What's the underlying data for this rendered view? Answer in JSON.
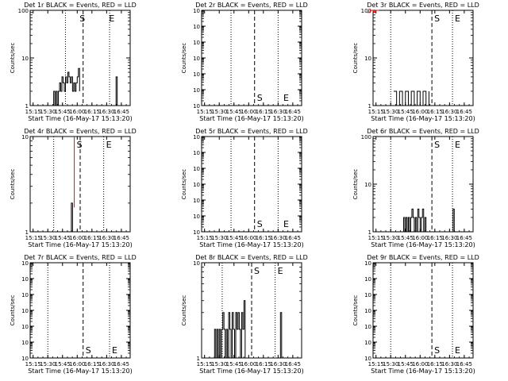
{
  "chart_data": [
    {
      "type": "line",
      "title": "Det 1r BLACK = Events, RED = LLD",
      "xlabel": "Start Time (16-May-17 15:13:20)",
      "ylabel": "Counts/sec",
      "scale": "log",
      "ylim": [
        1,
        100
      ],
      "ytick_labels": [
        "1",
        "10",
        "100"
      ],
      "xtick_labels": [
        "15:15",
        "15:30",
        "15:45",
        "16:00",
        "16:15",
        "16:30",
        "16:45"
      ],
      "xlim_min": [
        15,
        55
      ],
      "vlines": {
        "dotted": [
          15.8,
          16.55
        ],
        "dashed": 16.1
      },
      "markers": {
        "S": 16.0,
        "E": 16.5
      },
      "series": [
        {
          "name": "BLACK",
          "color": "#000000",
          "x": [
            15.58,
            15.6,
            15.62,
            15.64,
            15.66,
            15.68,
            15.7,
            15.72,
            15.74,
            15.76,
            15.78,
            15.8,
            15.82,
            15.84,
            15.86,
            15.88,
            15.9,
            15.92,
            15.94,
            15.96,
            15.98,
            16.0,
            16.02,
            16.04
          ],
          "y": [
            1,
            2,
            1,
            2,
            1,
            2,
            3,
            2,
            4,
            3,
            2,
            4,
            3,
            5,
            4,
            3,
            4,
            2,
            3,
            2,
            3,
            4,
            6,
            2
          ]
        },
        {
          "name": "BLACK-2",
          "color": "#000000",
          "x": [
            16.64,
            16.66,
            16.68
          ],
          "y": [
            1,
            4,
            1
          ]
        }
      ]
    },
    {
      "type": "line",
      "title": "Det 2r BLACK = Events, RED = LLD",
      "xlabel": "Start Time (16-May-17 15:13:20)",
      "ylabel": "Counts/sec",
      "scale": "log",
      "ylim": [
        1,
        1000000
      ],
      "ytick_labels": [
        "10",
        "10",
        "10",
        "10",
        "10",
        "10",
        "10"
      ],
      "xtick_labels": [
        "15:15",
        "15:30",
        "15:45",
        "16:00",
        "16:15",
        "16:30",
        "16:45"
      ],
      "vlines": {
        "dotted": [
          15.7,
          16.5
        ],
        "dashed": 16.1
      },
      "markers": {
        "S": 16.1,
        "E": 16.55
      },
      "series": []
    },
    {
      "type": "line",
      "title": "Det 3r BLACK = Events, RED = LLD",
      "xlabel": "Start Time (16-May-17 15:13:20)",
      "ylabel": "Counts/sec",
      "scale": "log",
      "ylim": [
        1,
        100
      ],
      "ytick_labels": [
        "1",
        "10",
        "100"
      ],
      "xtick_labels": [
        "15:15",
        "15:30",
        "15:45",
        "16:00",
        "16:15",
        "16:30",
        "16:45"
      ],
      "vlines": {
        "dotted": [
          15.5,
          16.55
        ],
        "dashed": 16.2
      },
      "markers": {
        "S": 16.2,
        "E": 16.55
      },
      "series": [
        {
          "name": "BLACK",
          "color": "#000000",
          "x": [
            15.55,
            15.6,
            15.65,
            15.7,
            15.75,
            15.8,
            15.85,
            15.9,
            15.95,
            16.0,
            16.05,
            16.1,
            16.15
          ],
          "y": [
            2,
            1,
            2,
            1,
            2,
            1,
            2,
            1,
            2,
            1,
            2,
            1,
            2
          ]
        },
        {
          "name": "RED",
          "color": "#ff0000",
          "x": [
            15.1,
            15.15,
            15.2,
            15.25,
            15.3
          ],
          "y": [
            90,
            100,
            95,
            100,
            100
          ]
        }
      ]
    },
    {
      "type": "line",
      "title": "Det 4r BLACK = Events, RED = LLD",
      "xlabel": "Start Time (16-May-17 15:13:20)",
      "ylabel": "Counts/sec",
      "scale": "log",
      "ylim": [
        1,
        10
      ],
      "ytick_labels": [
        "1",
        "10"
      ],
      "xtick_labels": [
        "15:15",
        "15:30",
        "15:45",
        "16:00",
        "16:15",
        "16:30",
        "16:45"
      ],
      "vlines": {
        "dotted": [
          15.6,
          16.45
        ],
        "dashed": 16.05
      },
      "markers": {
        "S": 15.95,
        "E": 16.45
      },
      "series": [
        {
          "name": "BLACK",
          "color": "#000000",
          "x": [
            15.88,
            15.9,
            15.92
          ],
          "y": [
            1,
            2,
            1
          ]
        },
        {
          "name": "RED",
          "color": "#ff0000",
          "x": [
            15.95,
            15.95
          ],
          "y": [
            1.8,
            10
          ]
        }
      ]
    },
    {
      "type": "line",
      "title": "Det 5r BLACK = Events, RED = LLD",
      "xlabel": "Start Time (16-May-17 15:13:20)",
      "ylabel": "Counts/sec",
      "scale": "log",
      "ylim": [
        1,
        1000000
      ],
      "ytick_labels": [
        "10",
        "10",
        "10",
        "10",
        "10",
        "10",
        "10"
      ],
      "xtick_labels": [
        "15:15",
        "15:30",
        "15:45",
        "16:00",
        "16:15",
        "16:30",
        "16:45"
      ],
      "vlines": {
        "dotted": [
          15.7,
          16.5
        ],
        "dashed": 16.1
      },
      "markers": {
        "S": 16.1,
        "E": 16.55
      },
      "series": []
    },
    {
      "type": "line",
      "title": "Det 6r BLACK = Events, RED = LLD",
      "xlabel": "Start Time (16-May-17 15:13:20)",
      "ylabel": "Counts/sec",
      "scale": "log",
      "ylim": [
        1,
        100
      ],
      "ytick_labels": [
        "1",
        "10",
        "100"
      ],
      "xtick_labels": [
        "15:15",
        "15:30",
        "15:45",
        "16:00",
        "16:15",
        "16:30",
        "16:45"
      ],
      "vlines": {
        "dotted": [
          15.5,
          16.55
        ],
        "dashed": 16.2
      },
      "markers": {
        "S": 16.2,
        "E": 16.55
      },
      "series": [
        {
          "name": "BLACK",
          "color": "#000000",
          "x": [
            15.7,
            15.72,
            15.74,
            15.76,
            15.78,
            15.8,
            15.82,
            15.84,
            15.86,
            15.88,
            15.9,
            15.92,
            15.94,
            15.96,
            15.98,
            16.0,
            16.02,
            16.04,
            16.06,
            16.08,
            16.1
          ],
          "y": [
            1,
            2,
            1,
            2,
            1,
            2,
            1,
            2,
            3,
            2,
            1,
            2,
            1,
            3,
            2,
            1,
            2,
            3,
            1,
            2,
            1
          ]
        },
        {
          "name": "BLACK-2",
          "color": "#000000",
          "x": [
            16.54,
            16.56,
            16.58
          ],
          "y": [
            1,
            3,
            1
          ]
        }
      ]
    },
    {
      "type": "line",
      "title": "Det 7r BLACK = Events, RED = LLD",
      "xlabel": "Start Time (16-May-17 15:13:20)",
      "ylabel": "Counts/sec",
      "scale": "log",
      "ylim": [
        1,
        1000000
      ],
      "ytick_labels": [
        "10",
        "10",
        "10",
        "10",
        "10",
        "10",
        "10"
      ],
      "xtick_labels": [
        "15:15",
        "15:30",
        "15:45",
        "16:00",
        "16:15",
        "16:30",
        "16:45"
      ],
      "vlines": {
        "dotted": [
          15.5,
          16.55
        ],
        "dashed": 16.1
      },
      "markers": {
        "S": 16.1,
        "E": 16.55
      },
      "series": []
    },
    {
      "type": "line",
      "title": "Det 8r BLACK = Events, RED = LLD",
      "xlabel": "Start Time (16-May-17 15:13:20)",
      "ylabel": "Counts/sec",
      "scale": "log",
      "ylim": [
        1,
        10
      ],
      "ytick_labels": [
        "1",
        "10"
      ],
      "xtick_labels": [
        "15:15",
        "15:30",
        "15:45",
        "16:00",
        "16:15",
        "16:30",
        "16:45"
      ],
      "vlines": {
        "dotted": [
          15.55,
          16.45
        ],
        "dashed": 16.05
      },
      "markers": {
        "S": 16.05,
        "E": 16.45
      },
      "series": [
        {
          "name": "BLACK",
          "color": "#000000",
          "x": [
            15.4,
            15.42,
            15.44,
            15.46,
            15.48,
            15.5,
            15.52,
            15.54,
            15.56,
            15.58,
            15.6,
            15.62,
            15.64,
            15.66,
            15.68,
            15.7,
            15.72,
            15.74,
            15.76,
            15.78,
            15.8,
            15.82,
            15.84,
            15.86,
            15.88,
            15.9,
            15.92,
            15.94
          ],
          "y": [
            1,
            2,
            1,
            2,
            1,
            2,
            1,
            2,
            3,
            2,
            1,
            2,
            1,
            3,
            2,
            1,
            3,
            2,
            1,
            3,
            2,
            3,
            2,
            1,
            3,
            2,
            4,
            1
          ]
        },
        {
          "name": "BLACK-2",
          "color": "#000000",
          "x": [
            16.52,
            16.54,
            16.56
          ],
          "y": [
            1,
            3,
            1
          ]
        }
      ]
    },
    {
      "type": "line",
      "title": "Det 9r BLACK = Events, RED = LLD",
      "xlabel": "Start Time (16-May-17 15:13:20)",
      "ylabel": "Counts/sec",
      "scale": "log",
      "ylim": [
        1,
        1000000
      ],
      "ytick_labels": [
        "10",
        "10",
        "10",
        "10",
        "10",
        "10",
        "10"
      ],
      "xtick_labels": [
        "15:15",
        "15:30",
        "15:45",
        "16:00",
        "16:15",
        "16:30",
        "16:45"
      ],
      "vlines": {
        "dotted": [
          15.5,
          16.55
        ],
        "dashed": 16.2
      },
      "markers": {
        "S": 16.2,
        "E": 16.55
      },
      "series": []
    }
  ]
}
